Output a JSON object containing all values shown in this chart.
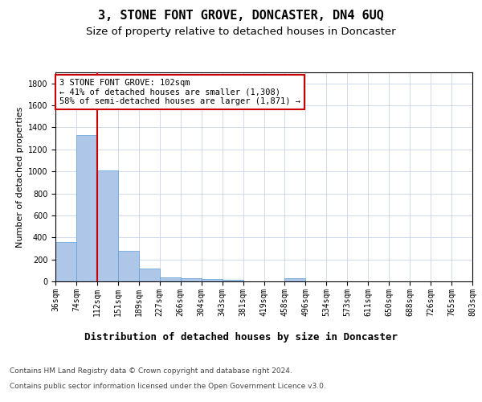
{
  "title": "3, STONE FONT GROVE, DONCASTER, DN4 6UQ",
  "subtitle": "Size of property relative to detached houses in Doncaster",
  "xlabel": "Distribution of detached houses by size in Doncaster",
  "ylabel": "Number of detached properties",
  "footer_line1": "Contains HM Land Registry data © Crown copyright and database right 2024.",
  "footer_line2": "Contains public sector information licensed under the Open Government Licence v3.0.",
  "bin_labels": [
    "36sqm",
    "74sqm",
    "112sqm",
    "151sqm",
    "189sqm",
    "227sqm",
    "266sqm",
    "304sqm",
    "343sqm",
    "381sqm",
    "419sqm",
    "458sqm",
    "496sqm",
    "534sqm",
    "573sqm",
    "611sqm",
    "650sqm",
    "688sqm",
    "726sqm",
    "765sqm",
    "803sqm"
  ],
  "bar_values": [
    355,
    1330,
    1010,
    275,
    120,
    38,
    32,
    22,
    15,
    0,
    0,
    28,
    0,
    0,
    0,
    0,
    0,
    0,
    0,
    0
  ],
  "bar_color": "#aec6e8",
  "bar_edge_color": "#5a9fd4",
  "vline_color": "#cc0000",
  "annotation_text": "3 STONE FONT GROVE: 102sqm\n← 41% of detached houses are smaller (1,308)\n58% of semi-detached houses are larger (1,871) →",
  "annotation_box_color": "#ffffff",
  "annotation_border_color": "#cc0000",
  "ylim": [
    0,
    1900
  ],
  "yticks": [
    0,
    200,
    400,
    600,
    800,
    1000,
    1200,
    1400,
    1600,
    1800
  ],
  "bg_color": "#ffffff",
  "grid_color": "#c8d4e8",
  "title_fontsize": 11,
  "subtitle_fontsize": 9.5,
  "ylabel_fontsize": 8,
  "xlabel_fontsize": 9,
  "tick_fontsize": 7,
  "annotation_fontsize": 7.5,
  "footer_fontsize": 6.5
}
